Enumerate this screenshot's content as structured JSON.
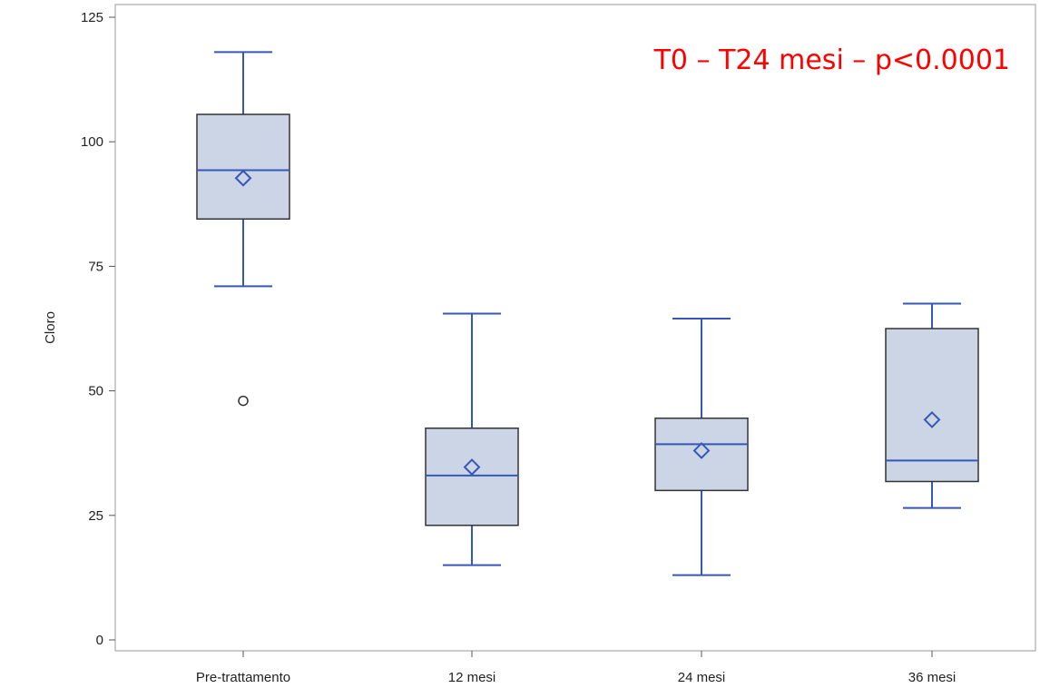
{
  "chart_data": {
    "type": "box",
    "title": "",
    "xlabel": "",
    "ylabel": "Cloro",
    "ylim": [
      0,
      125
    ],
    "yticks": [
      0,
      25,
      50,
      75,
      100,
      125
    ],
    "categories": [
      "Pre-trattamento",
      "12 mesi",
      "24 mesi",
      "36 mesi"
    ],
    "boxes": [
      {
        "category": "Pre-trattamento",
        "min": 71,
        "q1": 84.5,
        "median": 94.3,
        "q3": 105.5,
        "max": 118,
        "mean": 92.7,
        "outliers": [
          48
        ]
      },
      {
        "category": "12 mesi",
        "min": 15,
        "q1": 23,
        "median": 33,
        "q3": 42.5,
        "max": 65.5,
        "mean": 34.7,
        "outliers": []
      },
      {
        "category": "24 mesi",
        "min": 13,
        "q1": 30,
        "median": 39.3,
        "q3": 44.5,
        "max": 64.5,
        "mean": 38,
        "outliers": []
      },
      {
        "category": "36 mesi",
        "min": 26.5,
        "q1": 31.8,
        "median": 36,
        "q3": 62.5,
        "max": 67.5,
        "mean": 44.2,
        "outliers": []
      }
    ],
    "annotation": "T0 – T24 mesi – p<0.0001",
    "grid": false,
    "colors": {
      "box_fill": "#cbd5e6",
      "box_edge": "#333333",
      "whisker": "#3558b8",
      "median": "#3558b8",
      "mean_marker": "#3558b8",
      "outlier": "#333333",
      "annotation": "#ff0000",
      "frame": "#999999"
    }
  }
}
